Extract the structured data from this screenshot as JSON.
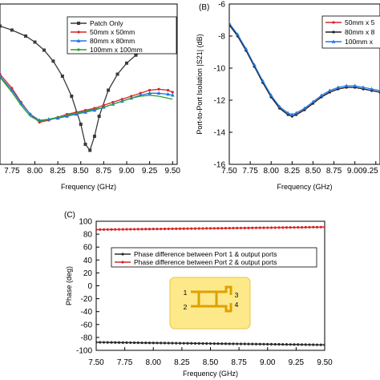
{
  "chart_data": [
    {
      "panel": "",
      "type": "line",
      "xlabel": "Frequency (GHz)",
      "ylabel": "",
      "xlim": [
        7.62,
        9.55
      ],
      "ylim": [
        -16,
        0
      ],
      "x_ticks": [
        "7.75",
        "8.00",
        "8.25",
        "8.50",
        "8.75",
        "9.00",
        "9.25",
        "9.50"
      ],
      "y_ticks": [],
      "legend_position": "top-right",
      "series": [
        {
          "name": "Patch Only",
          "color": "#3a3a3a",
          "marker": "square",
          "x": [
            7.62,
            7.75,
            7.9,
            8.0,
            8.1,
            8.2,
            8.3,
            8.4,
            8.5,
            8.55,
            8.6,
            8.65,
            8.7,
            8.8,
            8.9,
            9.0,
            9.1,
            9.2,
            9.3,
            9.4,
            9.5
          ],
          "y": [
            -2.2,
            -2.6,
            -3.2,
            -3.8,
            -4.6,
            -5.7,
            -7.2,
            -9.2,
            -12.0,
            -14.0,
            -14.6,
            -13.2,
            -11.2,
            -8.6,
            -7.0,
            -5.9,
            -5.1,
            -4.5,
            -4.0,
            -3.5,
            -3.0
          ]
        },
        {
          "name": "50mm x 50mm",
          "color": "#d62728",
          "marker": "circle",
          "x": [
            7.62,
            7.75,
            7.85,
            7.95,
            8.05,
            8.15,
            8.25,
            8.35,
            8.45,
            8.55,
            8.65,
            8.75,
            8.85,
            8.95,
            9.05,
            9.15,
            9.25,
            9.35,
            9.45,
            9.5
          ],
          "y": [
            -7.0,
            -8.4,
            -9.8,
            -11.0,
            -11.8,
            -11.6,
            -11.3,
            -11.0,
            -10.8,
            -10.6,
            -10.4,
            -10.1,
            -9.8,
            -9.5,
            -9.2,
            -8.9,
            -8.6,
            -8.5,
            -8.6,
            -8.8
          ]
        },
        {
          "name": "80mm x 80mm",
          "color": "#1f77e4",
          "marker": "triangle",
          "x": [
            7.62,
            7.75,
            7.85,
            7.95,
            8.05,
            8.15,
            8.25,
            8.35,
            8.45,
            8.55,
            8.65,
            8.75,
            8.85,
            8.95,
            9.05,
            9.15,
            9.25,
            9.35,
            9.45,
            9.5
          ],
          "y": [
            -7.2,
            -8.6,
            -9.9,
            -11.0,
            -11.6,
            -11.5,
            -11.4,
            -11.2,
            -11.0,
            -10.8,
            -10.6,
            -10.3,
            -10.0,
            -9.7,
            -9.4,
            -9.1,
            -8.9,
            -8.9,
            -9.0,
            -9.1
          ]
        },
        {
          "name": "100mm x 100mm",
          "color": "#2ca02c",
          "marker": "none",
          "x": [
            7.62,
            7.75,
            7.85,
            7.95,
            8.05,
            8.15,
            8.25,
            8.35,
            8.45,
            8.55,
            8.65,
            8.75,
            8.85,
            8.95,
            9.05,
            9.15,
            9.25,
            9.35,
            9.45,
            9.5
          ],
          "y": [
            -7.3,
            -8.8,
            -10.1,
            -11.2,
            -11.7,
            -11.5,
            -11.3,
            -11.1,
            -10.9,
            -10.7,
            -10.5,
            -10.3,
            -10.0,
            -9.7,
            -9.4,
            -9.2,
            -9.1,
            -9.2,
            -9.4,
            -9.5
          ]
        }
      ]
    },
    {
      "panel": "(B)",
      "type": "line",
      "xlabel": "Frequency (GHz)",
      "ylabel": "Port-to-Port Isolation |S21| (dB)",
      "xlim": [
        7.5,
        9.3
      ],
      "ylim": [
        -16,
        -6
      ],
      "x_ticks": [
        "7.50",
        "7.75",
        "8.00",
        "8.25",
        "8.50",
        "8.75",
        "9.00",
        "9.25"
      ],
      "y_ticks": [
        "-6",
        "-8",
        "-10",
        "-12",
        "-14",
        "-16"
      ],
      "legend_position": "top-right",
      "series": [
        {
          "name": "50mm x 5",
          "color": "#d62728",
          "marker": "circle",
          "x": [
            7.5,
            7.6,
            7.7,
            7.8,
            7.9,
            8.0,
            8.1,
            8.2,
            8.25,
            8.3,
            8.4,
            8.5,
            8.6,
            8.7,
            8.8,
            8.9,
            9.0,
            9.1,
            9.2,
            9.3
          ],
          "y": [
            -7.3,
            -8.0,
            -8.9,
            -9.9,
            -10.9,
            -11.8,
            -12.5,
            -12.9,
            -13.0,
            -12.9,
            -12.6,
            -12.2,
            -11.8,
            -11.5,
            -11.3,
            -11.2,
            -11.2,
            -11.3,
            -11.4,
            -11.5
          ]
        },
        {
          "name": "80mm x 8",
          "color": "#1f1f1f",
          "marker": "circle",
          "x": [
            7.5,
            7.6,
            7.7,
            7.8,
            7.9,
            8.0,
            8.1,
            8.2,
            8.25,
            8.3,
            8.4,
            8.5,
            8.6,
            8.7,
            8.8,
            8.9,
            9.0,
            9.1,
            9.2,
            9.3
          ],
          "y": [
            -7.3,
            -8.0,
            -8.9,
            -9.9,
            -10.9,
            -11.8,
            -12.5,
            -12.9,
            -13.0,
            -12.9,
            -12.6,
            -12.2,
            -11.8,
            -11.5,
            -11.3,
            -11.2,
            -11.2,
            -11.3,
            -11.4,
            -11.5
          ]
        },
        {
          "name": "100mm x",
          "color": "#1f77e4",
          "marker": "triangle",
          "x": [
            7.5,
            7.6,
            7.7,
            7.8,
            7.9,
            8.0,
            8.1,
            8.2,
            8.25,
            8.3,
            8.4,
            8.5,
            8.6,
            8.7,
            8.8,
            8.9,
            9.0,
            9.1,
            9.2,
            9.3
          ],
          "y": [
            -7.2,
            -7.9,
            -8.8,
            -9.8,
            -10.8,
            -11.7,
            -12.4,
            -12.8,
            -12.9,
            -12.8,
            -12.5,
            -12.1,
            -11.7,
            -11.4,
            -11.2,
            -11.1,
            -11.1,
            -11.2,
            -11.3,
            -11.4
          ]
        }
      ]
    },
    {
      "panel": "(C)",
      "type": "line",
      "xlabel": "Frequency (GHz)",
      "ylabel": "Phase (deg)",
      "xlim": [
        7.5,
        9.5
      ],
      "ylim": [
        -100,
        100
      ],
      "x_ticks": [
        "7.50",
        "7.75",
        "8.00",
        "8.25",
        "8.50",
        "8.75",
        "9.00",
        "9.25",
        "9.50"
      ],
      "y_ticks": [
        "100",
        "80",
        "60",
        "40",
        "20",
        "0",
        "-20",
        "-40",
        "-60",
        "-80",
        "-100"
      ],
      "legend_position": "top-right",
      "series": [
        {
          "name": "Phase difference between Port 1 & output ports",
          "color": "#2b2b2b",
          "marker": "circle",
          "x": [
            7.5,
            9.5
          ],
          "y": [
            -87.5,
            -91.5
          ]
        },
        {
          "name": "Phase difference between Port 2 & output ports",
          "color": "#d62728",
          "marker": "circle",
          "x": [
            7.5,
            9.5
          ],
          "y": [
            87.0,
            91.0
          ]
        }
      ],
      "inset": {
        "port_labels": [
          "1",
          "2",
          "3",
          "4"
        ],
        "fill": "#fde98a",
        "trace": "#e0a000"
      }
    }
  ]
}
